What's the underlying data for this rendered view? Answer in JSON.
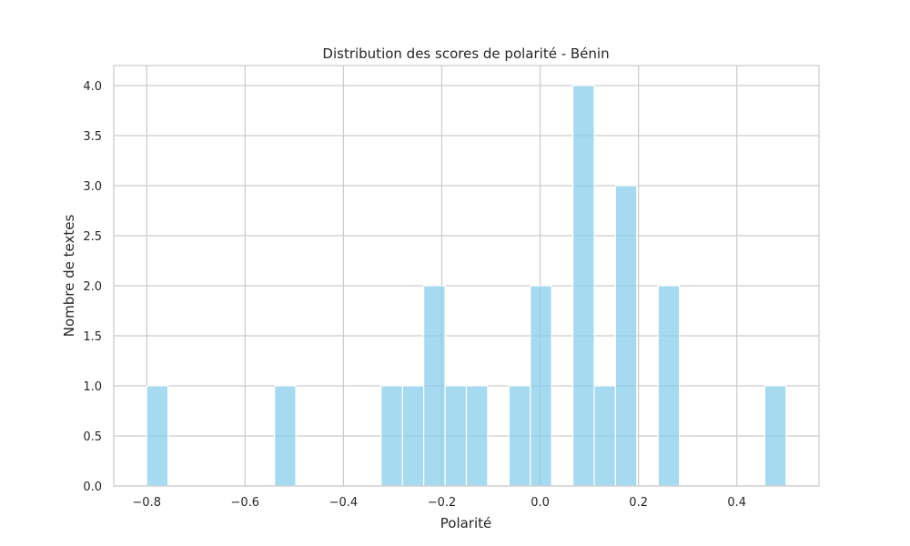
{
  "chart_data": {
    "type": "bar",
    "title": "Distribution des scores de polarité - Bénin",
    "xlabel": "Polarité",
    "ylabel": "Nombre de textes",
    "xlim": [
      -0.867,
      0.567
    ],
    "ylim": [
      0,
      4.2
    ],
    "grid": true,
    "bar_color": "#87ceeb",
    "bin_width": 0.0433,
    "bins": [
      {
        "x0": -0.8,
        "count": 1
      },
      {
        "x0": -0.54,
        "count": 1
      },
      {
        "x0": -0.3233,
        "count": 1
      },
      {
        "x0": -0.28,
        "count": 1
      },
      {
        "x0": -0.2367,
        "count": 2
      },
      {
        "x0": -0.1933,
        "count": 1
      },
      {
        "x0": -0.15,
        "count": 1
      },
      {
        "x0": -0.0633,
        "count": 1
      },
      {
        "x0": -0.02,
        "count": 2
      },
      {
        "x0": 0.0667,
        "count": 4
      },
      {
        "x0": 0.11,
        "count": 1
      },
      {
        "x0": 0.1533,
        "count": 3
      },
      {
        "x0": 0.24,
        "count": 2
      },
      {
        "x0": 0.4567,
        "count": 1
      }
    ],
    "x_ticks": [
      -0.8,
      -0.6,
      -0.4,
      -0.2,
      0.0,
      0.2,
      0.4
    ],
    "x_tick_labels": [
      "−0.8",
      "−0.6",
      "−0.4",
      "−0.2",
      "0.0",
      "0.2",
      "0.4"
    ],
    "y_ticks": [
      0,
      0.5,
      1.0,
      1.5,
      2.0,
      2.5,
      3.0,
      3.5,
      4.0
    ],
    "y_tick_labels": [
      "0.0",
      "0.5",
      "1.0",
      "1.5",
      "2.0",
      "2.5",
      "3.0",
      "3.5",
      "4.0"
    ]
  }
}
